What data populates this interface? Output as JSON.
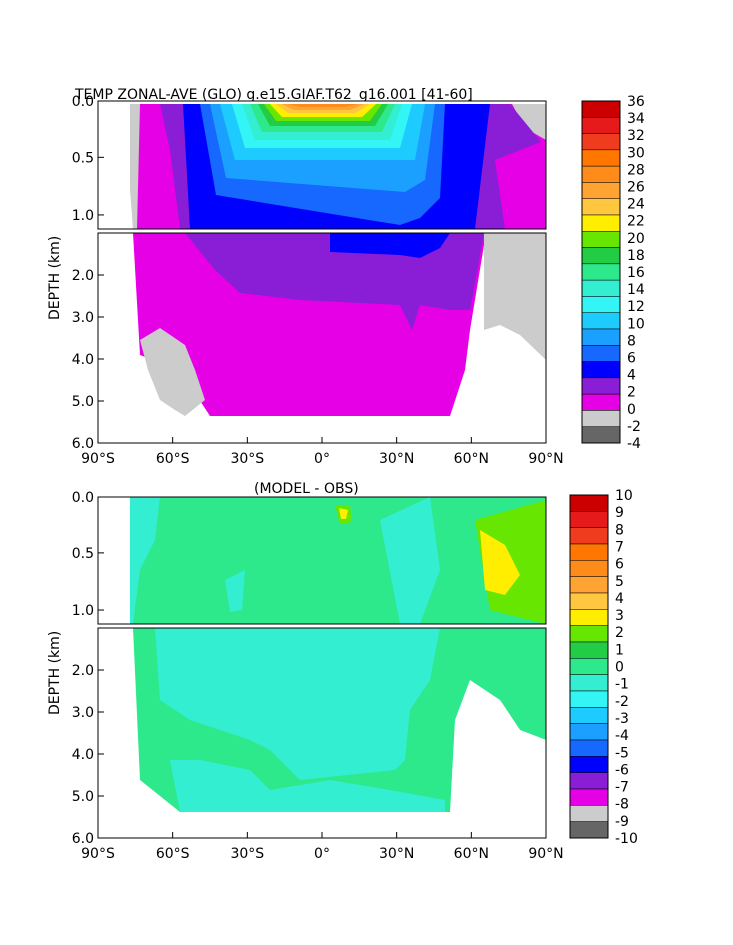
{
  "chart_data": [
    {
      "type": "heatmap",
      "title": "TEMP ZONAL-AVE (GLO) g.e15.GIAF.T62_g16.001 [41-60]",
      "ylabel": "DEPTH (km)",
      "y_upper_ticks": [
        "0.0",
        "0.5",
        "1.0"
      ],
      "y_lower_ticks": [
        "2.0",
        "3.0",
        "4.0",
        "5.0",
        "6.0"
      ],
      "x_ticks": [
        "90°S",
        "60°S",
        "30°S",
        "0°",
        "30°N",
        "60°N",
        "90°N"
      ],
      "xlim": [
        -90,
        90
      ],
      "ylim": [
        0,
        6
      ],
      "colorbar_labels": [
        "36",
        "34",
        "32",
        "30",
        "28",
        "26",
        "24",
        "22",
        "20",
        "18",
        "16",
        "14",
        "12",
        "10",
        "8",
        "6",
        "4",
        "2",
        "0",
        "-2",
        "-4"
      ],
      "colorbar_colors": [
        "#cc0000",
        "#e61a1a",
        "#f03c1e",
        "#ff7700",
        "#ff8c1a",
        "#ffa433",
        "#ffc640",
        "#ffee00",
        "#66e600",
        "#22cc44",
        "#2ee88c",
        "#33eed1",
        "#33f5f5",
        "#1ecbff",
        "#1ba0ff",
        "#1668ff",
        "#0000ff",
        "#8a1ed6",
        "#e600e6",
        "#cccccc",
        "#666666"
      ]
    },
    {
      "type": "heatmap",
      "title": "(MODEL - OBS)",
      "ylabel": "DEPTH (km)",
      "y_upper_ticks": [
        "0.0",
        "0.5",
        "1.0"
      ],
      "y_lower_ticks": [
        "2.0",
        "3.0",
        "4.0",
        "5.0",
        "6.0"
      ],
      "x_ticks": [
        "90°S",
        "60°S",
        "30°S",
        "0°",
        "30°N",
        "60°N",
        "90°N"
      ],
      "xlim": [
        -90,
        90
      ],
      "ylim": [
        0,
        6
      ],
      "colorbar_labels": [
        "10",
        "9",
        "8",
        "7",
        "6",
        "5",
        "4",
        "3",
        "2",
        "1",
        "0",
        "-1",
        "-2",
        "-3",
        "-4",
        "-5",
        "-6",
        "-7",
        "-8",
        "-9",
        "-10"
      ],
      "colorbar_colors": [
        "#cc0000",
        "#e61a1a",
        "#f03c1e",
        "#ff7700",
        "#ff8c1a",
        "#ffa433",
        "#ffc640",
        "#ffee00",
        "#66e600",
        "#22cc44",
        "#2ee88c",
        "#33eed1",
        "#33f5f5",
        "#1ecbff",
        "#1ba0ff",
        "#1668ff",
        "#0000ff",
        "#8a1ed6",
        "#e600e6",
        "#cccccc",
        "#666666"
      ]
    }
  ]
}
